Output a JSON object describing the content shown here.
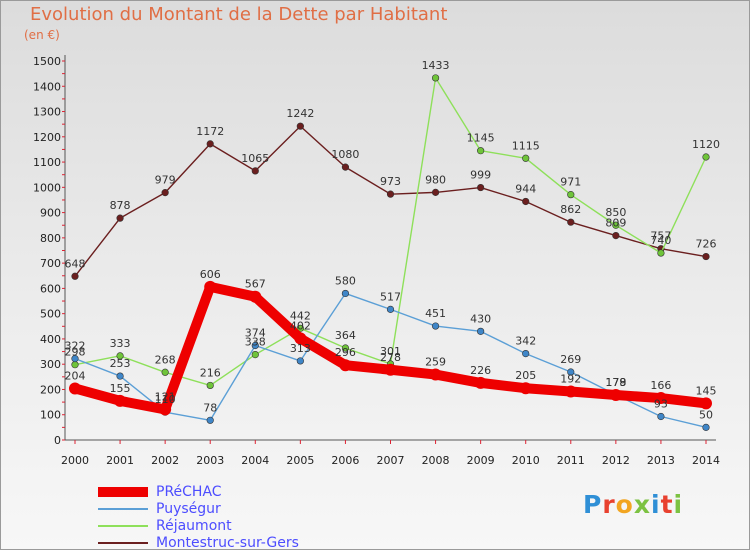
{
  "title": "Evolution du Montant de la Dette par Habitant",
  "unit": "(en €)",
  "logo": "Proxiti",
  "colors": {
    "title": "#e06e45",
    "legend_text": "#4d4dff"
  },
  "chart_data": {
    "type": "line",
    "x": [
      2000,
      2001,
      2002,
      2003,
      2004,
      2005,
      2006,
      2007,
      2008,
      2009,
      2010,
      2011,
      2012,
      2013,
      2014
    ],
    "ylim": [
      0,
      1500
    ],
    "yticks": [
      0,
      100,
      200,
      300,
      400,
      500,
      600,
      700,
      800,
      900,
      1000,
      1100,
      1200,
      1300,
      1400,
      1500
    ],
    "grid": false,
    "legend_position": "bottom-left",
    "series": [
      {
        "name": "Montestruc-sur-Gers",
        "color": "#6b1f1f",
        "marker": "#6b1f1f",
        "values": [
          648,
          878,
          979,
          1172,
          1065,
          1242,
          1080,
          973,
          980,
          999,
          944,
          862,
          809,
          757,
          726
        ]
      },
      {
        "name": "Réjaumont",
        "color": "#8ee05a",
        "marker": "#6fc43a",
        "values": [
          298,
          333,
          268,
          216,
          338,
          442,
          364,
          301,
          1433,
          1145,
          1115,
          971,
          850,
          740,
          1120
        ]
      },
      {
        "name": "Puységur",
        "color": "#5b9fd6",
        "marker": "#3f86c8",
        "values": [
          322,
          253,
          110,
          78,
          374,
          313,
          580,
          517,
          451,
          430,
          342,
          269,
          179,
          93,
          50
        ]
      },
      {
        "name": "PRéCHAC",
        "color": "#ee0000",
        "marker": "#ee0000",
        "values": [
          204,
          155,
          121,
          606,
          567,
          402,
          296,
          278,
          259,
          226,
          205,
          192,
          178,
          166,
          145
        ]
      }
    ]
  }
}
